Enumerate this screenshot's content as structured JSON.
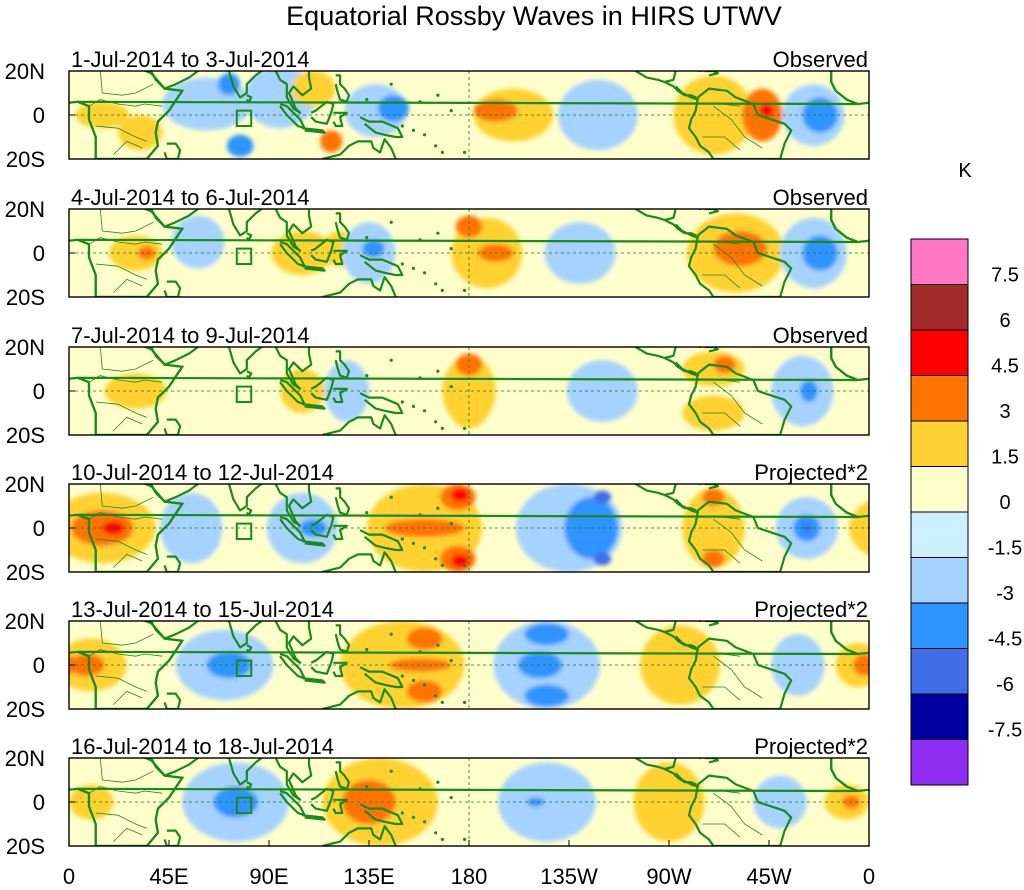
{
  "chart_data": {
    "type": "heatmap",
    "title": "Equatorial Rossby Waves in HIRS UTWV",
    "units": "K",
    "x_ticks": [
      "0",
      "45E",
      "90E",
      "135E",
      "180",
      "135W",
      "90W",
      "45W",
      "0"
    ],
    "x_range": [
      0,
      360
    ],
    "y_ticks": [
      "20N",
      "0",
      "20S"
    ],
    "y_range": [
      -20,
      20
    ],
    "colorbar": {
      "labels": [
        "7.5",
        "6",
        "4.5",
        "3",
        "1.5",
        "0",
        "-1.5",
        "-3",
        "-4.5",
        "-6",
        "-7.5"
      ],
      "colors": [
        "#ff77c5",
        "#a32a2a",
        "#ff0000",
        "#ff7300",
        "#ffd233",
        "#ffffcc",
        "#ccf0ff",
        "#a6d2ff",
        "#2e94ff",
        "#3f6ee8",
        "#0000a0",
        "#8f2df0"
      ]
    },
    "panels": [
      {
        "date_range": "1-Jul-2014 to 3-Jul-2014",
        "label": "Observed",
        "features": [
          {
            "lon": 15,
            "lat": 0,
            "value": 1.5,
            "rlon": 12,
            "rlat": 6
          },
          {
            "lon": 32,
            "lat": -8,
            "value": 1.5,
            "rlon": 10,
            "rlat": 8
          },
          {
            "lon": 62,
            "lat": 5,
            "value": -1.5,
            "rlon": 20,
            "rlat": 12
          },
          {
            "lon": 72,
            "lat": 14,
            "value": -3,
            "rlon": 5,
            "rlat": 5
          },
          {
            "lon": 77,
            "lat": -14,
            "value": -3,
            "rlon": 6,
            "rlat": 5
          },
          {
            "lon": 95,
            "lat": 8,
            "value": -1.5,
            "rlon": 16,
            "rlat": 14
          },
          {
            "lon": 110,
            "lat": 12,
            "value": 1.5,
            "rlon": 10,
            "rlat": 8
          },
          {
            "lon": 118,
            "lat": -12,
            "value": 3,
            "rlon": 5,
            "rlat": 5
          },
          {
            "lon": 138,
            "lat": 2,
            "value": -1.5,
            "rlon": 14,
            "rlat": 12
          },
          {
            "lon": 146,
            "lat": 3,
            "value": -3,
            "rlon": 7,
            "rlat": 6
          },
          {
            "lon": 192,
            "lat": 2,
            "value": 3,
            "rlon": 10,
            "rlat": 5
          },
          {
            "lon": 200,
            "lat": 0,
            "value": 1.5,
            "rlon": 18,
            "rlat": 12
          },
          {
            "lon": 238,
            "lat": 0,
            "value": -1.5,
            "rlon": 18,
            "rlat": 16
          },
          {
            "lon": 290,
            "lat": 0,
            "value": 1.5,
            "rlon": 18,
            "rlat": 18
          },
          {
            "lon": 312,
            "lat": 0,
            "value": 3,
            "rlon": 9,
            "rlat": 12
          },
          {
            "lon": 314,
            "lat": 2,
            "value": 4.5,
            "rlon": 3,
            "rlat": 3
          },
          {
            "lon": 338,
            "lat": 0,
            "value": -3,
            "rlon": 8,
            "rlat": 8
          },
          {
            "lon": 335,
            "lat": 0,
            "value": -1.5,
            "rlon": 14,
            "rlat": 14
          }
        ]
      },
      {
        "date_range": "4-Jul-2014 to 6-Jul-2014",
        "label": "Observed",
        "features": [
          {
            "lon": 30,
            "lat": 0,
            "value": 1.5,
            "rlon": 12,
            "rlat": 8
          },
          {
            "lon": 35,
            "lat": 0,
            "value": 3,
            "rlon": 4,
            "rlat": 3
          },
          {
            "lon": 58,
            "lat": 5,
            "value": -1.5,
            "rlon": 12,
            "rlat": 12
          },
          {
            "lon": 105,
            "lat": 0,
            "value": 1.5,
            "rlon": 14,
            "rlat": 10
          },
          {
            "lon": 122,
            "lat": 2,
            "value": 1.5,
            "rlon": 8,
            "rlat": 8
          },
          {
            "lon": 135,
            "lat": 0,
            "value": -1.5,
            "rlon": 12,
            "rlat": 14
          },
          {
            "lon": 137,
            "lat": 2,
            "value": -3,
            "rlon": 5,
            "rlat": 4
          },
          {
            "lon": 180,
            "lat": 12,
            "value": 3,
            "rlon": 6,
            "rlat": 5
          },
          {
            "lon": 188,
            "lat": 0,
            "value": 1.5,
            "rlon": 16,
            "rlat": 16
          },
          {
            "lon": 192,
            "lat": 0,
            "value": 3,
            "rlon": 8,
            "rlat": 4
          },
          {
            "lon": 230,
            "lat": 0,
            "value": -1.5,
            "rlon": 16,
            "rlat": 14
          },
          {
            "lon": 300,
            "lat": 0,
            "value": 1.5,
            "rlon": 22,
            "rlat": 18
          },
          {
            "lon": 302,
            "lat": 2,
            "value": 3,
            "rlon": 12,
            "rlat": 8
          },
          {
            "lon": 338,
            "lat": 0,
            "value": -3,
            "rlon": 8,
            "rlat": 8
          },
          {
            "lon": 335,
            "lat": 0,
            "value": -1.5,
            "rlon": 15,
            "rlat": 16
          }
        ]
      },
      {
        "date_range": "7-Jul-2014 to 9-Jul-2014",
        "label": "Observed",
        "features": [
          {
            "lon": 30,
            "lat": 0,
            "value": 1.5,
            "rlon": 14,
            "rlat": 8
          },
          {
            "lon": 105,
            "lat": 0,
            "value": 1.5,
            "rlon": 10,
            "rlat": 10
          },
          {
            "lon": 125,
            "lat": 0,
            "value": -1.5,
            "rlon": 10,
            "rlat": 14
          },
          {
            "lon": 180,
            "lat": 12,
            "value": 3,
            "rlon": 6,
            "rlat": 5
          },
          {
            "lon": 180,
            "lat": -10,
            "value": 1.5,
            "rlon": 8,
            "rlat": 7
          },
          {
            "lon": 180,
            "lat": 0,
            "value": 1.5,
            "rlon": 12,
            "rlat": 16
          },
          {
            "lon": 240,
            "lat": 0,
            "value": -1.5,
            "rlon": 16,
            "rlat": 14
          },
          {
            "lon": 290,
            "lat": 10,
            "value": 1.5,
            "rlon": 14,
            "rlat": 8
          },
          {
            "lon": 290,
            "lat": -10,
            "value": 1.5,
            "rlon": 14,
            "rlat": 8
          },
          {
            "lon": 295,
            "lat": 12,
            "value": 3,
            "rlon": 5,
            "rlat": 4
          },
          {
            "lon": 330,
            "lat": 0,
            "value": -1.5,
            "rlon": 14,
            "rlat": 16
          },
          {
            "lon": 333,
            "lat": 0,
            "value": -3,
            "rlon": 4,
            "rlat": 5
          }
        ]
      },
      {
        "date_range": "10-Jul-2014 to 12-Jul-2014",
        "label": "Projected*2",
        "features": [
          {
            "lon": 15,
            "lat": 0,
            "value": 1.5,
            "rlon": 24,
            "rlat": 16
          },
          {
            "lon": 15,
            "lat": 0,
            "value": 3,
            "rlon": 14,
            "rlat": 8
          },
          {
            "lon": 20,
            "lat": 0,
            "value": 4.5,
            "rlon": 5,
            "rlat": 3
          },
          {
            "lon": 55,
            "lat": 0,
            "value": -1.5,
            "rlon": 14,
            "rlat": 16
          },
          {
            "lon": 105,
            "lat": 0,
            "value": -1.5,
            "rlon": 16,
            "rlat": 16
          },
          {
            "lon": 110,
            "lat": 0,
            "value": -3,
            "rlon": 6,
            "rlat": 4
          },
          {
            "lon": 160,
            "lat": 0,
            "value": 1.5,
            "rlon": 26,
            "rlat": 20
          },
          {
            "lon": 160,
            "lat": 0,
            "value": 3,
            "rlon": 18,
            "rlat": 4
          },
          {
            "lon": 175,
            "lat": 14,
            "value": 3,
            "rlon": 8,
            "rlat": 6
          },
          {
            "lon": 175,
            "lat": -14,
            "value": 3,
            "rlon": 8,
            "rlat": 6
          },
          {
            "lon": 176,
            "lat": 15,
            "value": 4.5,
            "rlon": 4,
            "rlat": 3
          },
          {
            "lon": 176,
            "lat": -15,
            "value": 4.5,
            "rlon": 4,
            "rlat": 3
          },
          {
            "lon": 225,
            "lat": 0,
            "value": -1.5,
            "rlon": 24,
            "rlat": 20
          },
          {
            "lon": 235,
            "lat": 0,
            "value": -3,
            "rlon": 12,
            "rlat": 14
          },
          {
            "lon": 240,
            "lat": 14,
            "value": -4.5,
            "rlon": 4,
            "rlat": 3
          },
          {
            "lon": 240,
            "lat": -14,
            "value": -4.5,
            "rlon": 4,
            "rlat": 3
          },
          {
            "lon": 290,
            "lat": 14,
            "value": 3,
            "rlon": 5,
            "rlat": 4
          },
          {
            "lon": 290,
            "lat": -14,
            "value": 3,
            "rlon": 5,
            "rlat": 4
          },
          {
            "lon": 290,
            "lat": 0,
            "value": 1.5,
            "rlon": 14,
            "rlat": 18
          },
          {
            "lon": 332,
            "lat": 0,
            "value": -1.5,
            "rlon": 14,
            "rlat": 14
          },
          {
            "lon": 332,
            "lat": 0,
            "value": -3,
            "rlon": 6,
            "rlat": 6
          },
          {
            "lon": 332,
            "lat": 0,
            "value": -4.5,
            "rlon": 2,
            "rlat": 2
          }
        ]
      },
      {
        "date_range": "13-Jul-2014 to 15-Jul-2014",
        "label": "Projected*2",
        "features": [
          {
            "lon": 10,
            "lat": 0,
            "value": 1.5,
            "rlon": 16,
            "rlat": 12
          },
          {
            "lon": 8,
            "lat": 0,
            "value": 3,
            "rlon": 8,
            "rlat": 5
          },
          {
            "lon": 70,
            "lat": 0,
            "value": -1.5,
            "rlon": 22,
            "rlat": 16
          },
          {
            "lon": 72,
            "lat": 0,
            "value": -3,
            "rlon": 10,
            "rlat": 6
          },
          {
            "lon": 150,
            "lat": 0,
            "value": 1.5,
            "rlon": 28,
            "rlat": 20
          },
          {
            "lon": 158,
            "lat": 0,
            "value": 3,
            "rlon": 14,
            "rlat": 3
          },
          {
            "lon": 160,
            "lat": 12,
            "value": 3,
            "rlon": 8,
            "rlat": 5
          },
          {
            "lon": 160,
            "lat": -12,
            "value": 3,
            "rlon": 8,
            "rlat": 5
          },
          {
            "lon": 215,
            "lat": 0,
            "value": -1.5,
            "rlon": 24,
            "rlat": 20
          },
          {
            "lon": 212,
            "lat": 0,
            "value": -3,
            "rlon": 10,
            "rlat": 6
          },
          {
            "lon": 215,
            "lat": 14,
            "value": -3,
            "rlon": 10,
            "rlat": 5
          },
          {
            "lon": 215,
            "lat": -14,
            "value": -3,
            "rlon": 10,
            "rlat": 5
          },
          {
            "lon": 275,
            "lat": 0,
            "value": 1.5,
            "rlon": 18,
            "rlat": 18
          },
          {
            "lon": 328,
            "lat": 0,
            "value": -1.5,
            "rlon": 12,
            "rlat": 14
          },
          {
            "lon": 355,
            "lat": 0,
            "value": 1.5,
            "rlon": 10,
            "rlat": 10
          },
          {
            "lon": 358,
            "lat": 0,
            "value": 3,
            "rlon": 5,
            "rlat": 5
          }
        ]
      },
      {
        "date_range": "16-Jul-2014 to 18-Jul-2014",
        "label": "Projected*2",
        "features": [
          {
            "lon": 10,
            "lat": 0,
            "value": 1.5,
            "rlon": 10,
            "rlat": 8
          },
          {
            "lon": 75,
            "lat": 0,
            "value": -1.5,
            "rlon": 24,
            "rlat": 18
          },
          {
            "lon": 75,
            "lat": 0,
            "value": -3,
            "rlon": 10,
            "rlat": 7
          },
          {
            "lon": 140,
            "lat": 0,
            "value": 1.5,
            "rlon": 26,
            "rlat": 20
          },
          {
            "lon": 135,
            "lat": 0,
            "value": 3,
            "rlon": 12,
            "rlat": 10
          },
          {
            "lon": 215,
            "lat": 0,
            "value": -1.5,
            "rlon": 22,
            "rlat": 18
          },
          {
            "lon": 210,
            "lat": 0,
            "value": -3,
            "rlon": 4,
            "rlat": 2
          },
          {
            "lon": 270,
            "lat": 0,
            "value": 1.5,
            "rlon": 16,
            "rlat": 18
          },
          {
            "lon": 320,
            "lat": 0,
            "value": -1.5,
            "rlon": 12,
            "rlat": 12
          },
          {
            "lon": 350,
            "lat": 0,
            "value": 1.5,
            "rlon": 10,
            "rlat": 8
          },
          {
            "lon": 352,
            "lat": 0,
            "value": 3,
            "rlon": 4,
            "rlat": 3
          }
        ]
      }
    ]
  }
}
